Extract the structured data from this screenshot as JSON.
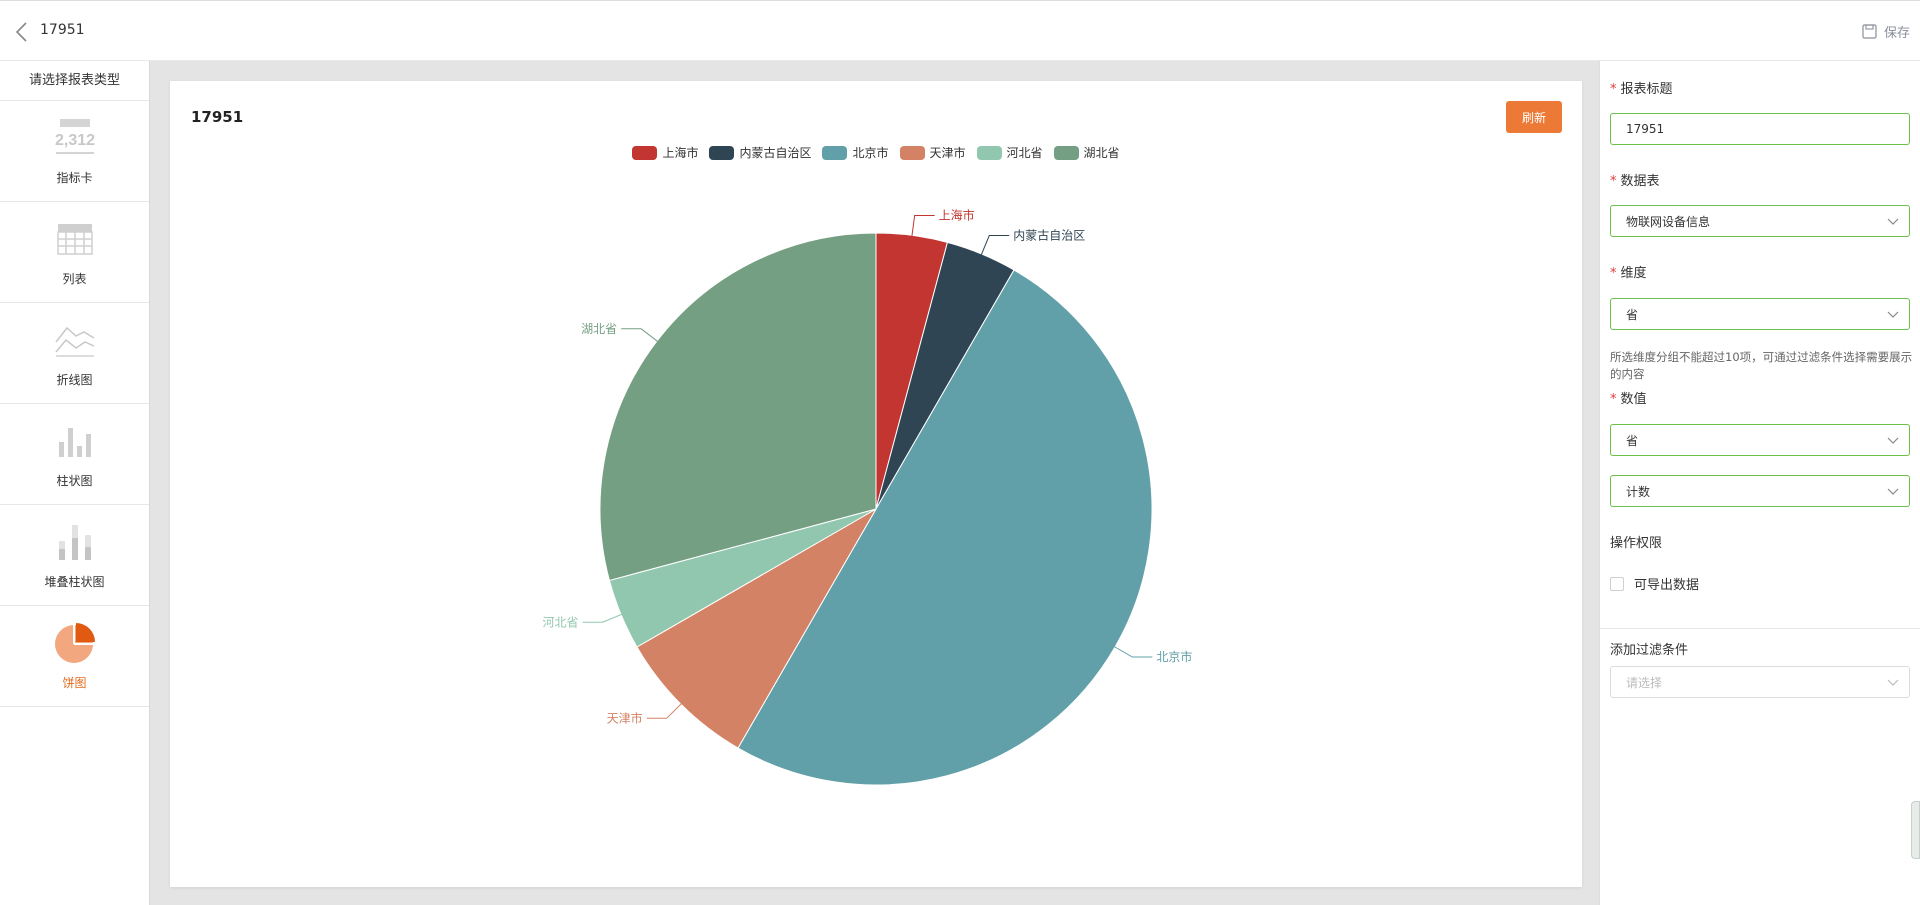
{
  "header": {
    "title": "17951",
    "save_label": "保存"
  },
  "sidebar": {
    "title": "请选择报表类型",
    "items": [
      {
        "label": "指标卡",
        "icon": "metric-card-icon",
        "sample": "2,312",
        "active": false
      },
      {
        "label": "列表",
        "icon": "table-icon",
        "active": false
      },
      {
        "label": "折线图",
        "icon": "line-chart-icon",
        "active": false
      },
      {
        "label": "柱状图",
        "icon": "bar-chart-icon",
        "active": false
      },
      {
        "label": "堆叠柱状图",
        "icon": "stacked-bar-chart-icon",
        "active": false
      },
      {
        "label": "饼图",
        "icon": "pie-chart-icon",
        "active": true
      }
    ]
  },
  "main": {
    "card_title": "17951",
    "refresh_label": "刷新"
  },
  "chart_data": {
    "type": "pie",
    "title": "17951",
    "legend_position": "top-center",
    "categories": [
      "上海市",
      "内蒙古自治区",
      "北京市",
      "天津市",
      "河北省",
      "湖北省"
    ],
    "values": [
      1,
      1,
      12,
      2,
      1,
      7
    ],
    "colors": [
      "#c23531",
      "#2f4554",
      "#61a0a8",
      "#d48265",
      "#91c7ae",
      "#749f83"
    ]
  },
  "form": {
    "title_label": "报表标题",
    "title_value": "17951",
    "table_label": "数据表",
    "table_value": "物联网设备信息",
    "dimension_label": "维度",
    "dimension_value": "省",
    "dimension_hint": "所选维度分组不能超过10项，可通过过滤条件选择需要展示的内容",
    "value_label": "数值",
    "value_field": "省",
    "value_agg": "计数",
    "permission_label": "操作权限",
    "export_label": "可导出数据",
    "export_checked": false,
    "filter_label": "添加过滤条件",
    "filter_placeholder": "请选择"
  },
  "colors": {
    "accent": "#ec7a36",
    "active_border": "#6bc14a",
    "required": "#e4393c"
  }
}
